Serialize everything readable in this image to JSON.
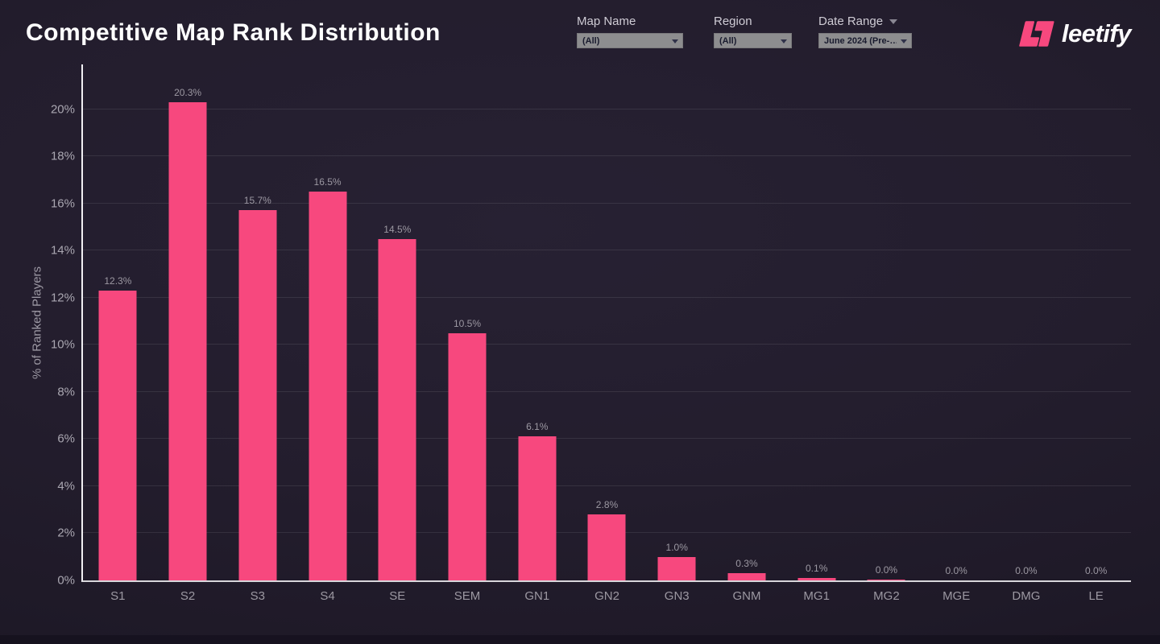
{
  "header": {
    "title": "Competitive Map Rank Distribution",
    "logo_text": "leetify",
    "filters": [
      {
        "id": "map-name",
        "label": "Map Name",
        "value": "(All)"
      },
      {
        "id": "region",
        "label": "Region",
        "value": "(All)"
      },
      {
        "id": "date-range",
        "label": "Date Range",
        "value": "June 2024 (Pre-…"
      }
    ]
  },
  "colors": {
    "accent": "#f7487e",
    "background": "#221c2c",
    "axis": "#f1eff3",
    "gridline": "rgba(255,255,255,0.09)",
    "tick_text": "#aaa7b1",
    "value_label_text": "#9c98a2",
    "dropdown_bg": "#8d8d8f",
    "dropdown_text": "#191b2e"
  },
  "chart_data": {
    "type": "bar",
    "title": "Competitive Map Rank Distribution",
    "xlabel": "",
    "ylabel": "% of Ranked Players",
    "legend": "none",
    "grid": "horizontal",
    "bar_color": "#f7487e",
    "categories": [
      "S1",
      "S2",
      "S3",
      "S4",
      "SE",
      "SEM",
      "GN1",
      "GN2",
      "GN3",
      "GNM",
      "MG1",
      "MG2",
      "MGE",
      "DMG",
      "LE"
    ],
    "values": [
      12.3,
      20.3,
      15.7,
      16.5,
      14.5,
      10.5,
      6.1,
      2.8,
      1.0,
      0.3,
      0.1,
      0.0,
      0.0,
      0.0,
      0.0
    ],
    "render_values": [
      12.3,
      20.3,
      15.7,
      16.5,
      14.5,
      10.5,
      6.1,
      2.8,
      1.0,
      0.3,
      0.1,
      0.04,
      0,
      0,
      0
    ],
    "value_labels": [
      "12.3%",
      "20.3%",
      "15.7%",
      "16.5%",
      "14.5%",
      "10.5%",
      "6.1%",
      "2.8%",
      "1.0%",
      "0.3%",
      "0.1%",
      "0.0%",
      "0.0%",
      "0.0%",
      "0.0%"
    ],
    "ylim": [
      0,
      21.9
    ],
    "y_ticks": [
      {
        "v": 0,
        "label": "0%"
      },
      {
        "v": 2,
        "label": "2%"
      },
      {
        "v": 4,
        "label": "4%"
      },
      {
        "v": 6,
        "label": "6%"
      },
      {
        "v": 8,
        "label": "8%"
      },
      {
        "v": 10,
        "label": "10%"
      },
      {
        "v": 12,
        "label": "12%"
      },
      {
        "v": 14,
        "label": "14%"
      },
      {
        "v": 16,
        "label": "16%"
      },
      {
        "v": 18,
        "label": "18%"
      },
      {
        "v": 20,
        "label": "20%"
      }
    ],
    "gridline_values": [
      2,
      4,
      6,
      8,
      10,
      12,
      14,
      16,
      18,
      20
    ]
  }
}
